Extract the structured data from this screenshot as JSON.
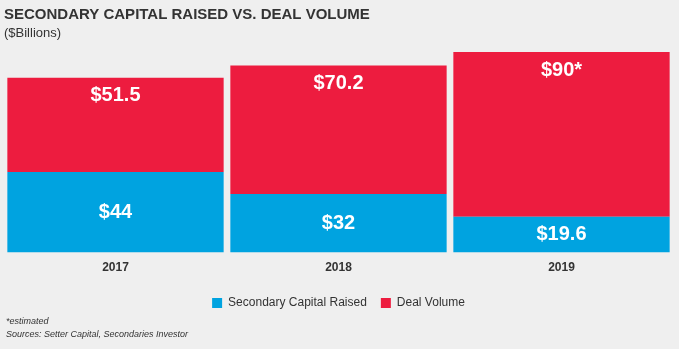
{
  "chart_data": {
    "type": "bar",
    "title": "SECONDARY CAPITAL RAISED VS. DEAL VOLUME",
    "subtitle": "($Billions)",
    "categories": [
      "2017",
      "2018",
      "2019"
    ],
    "series": [
      {
        "name": "Secondary Capital Raised",
        "color": "#00a3e0",
        "values": [
          44,
          32,
          19.6
        ],
        "value_labels": [
          "$44",
          "$32",
          "$19.6"
        ]
      },
      {
        "name": "Deal Volume",
        "color": "#ed1c3f",
        "values": [
          51.5,
          70.2,
          90
        ],
        "value_labels": [
          "$51.5",
          "$70.2",
          "$90*"
        ]
      }
    ],
    "stacked": true,
    "data_labels": true,
    "legend": "bottom",
    "grid": false,
    "tick_labels": "x",
    "ylim": [
      0,
      112
    ],
    "annotations": [
      "*estimated",
      "Sources: Setter Capital, Secondaries Investor"
    ]
  }
}
